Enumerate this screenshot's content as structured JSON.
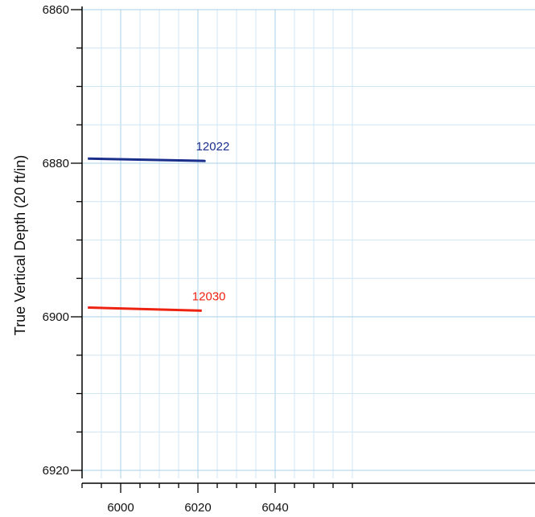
{
  "chart_data": {
    "type": "line",
    "title": "",
    "xlabel": "",
    "ylabel": "True Vertical Depth (20 ft/in)",
    "xlim": [
      5990,
      6060
    ],
    "ylim": [
      6860,
      6921
    ],
    "y_inverted": true,
    "grid": true,
    "legend": "none",
    "x_ticks": [
      6000,
      6020,
      6040
    ],
    "y_ticks": [
      6860,
      6880,
      6900,
      6920
    ],
    "x_minor_step": 5,
    "y_minor_step": 5,
    "grid_color": "#cfe6f5",
    "major_grid_color": "#a9d1ea",
    "series": [
      {
        "name": "12022",
        "color": "#1a2f8c",
        "x": [
          5991.5,
          6022
        ],
        "y": [
          6879.4,
          6879.7
        ]
      },
      {
        "name": "12030",
        "color": "#ee2211",
        "x": [
          5991.5,
          6021
        ],
        "y": [
          6898.8,
          6899.2
        ]
      }
    ]
  }
}
